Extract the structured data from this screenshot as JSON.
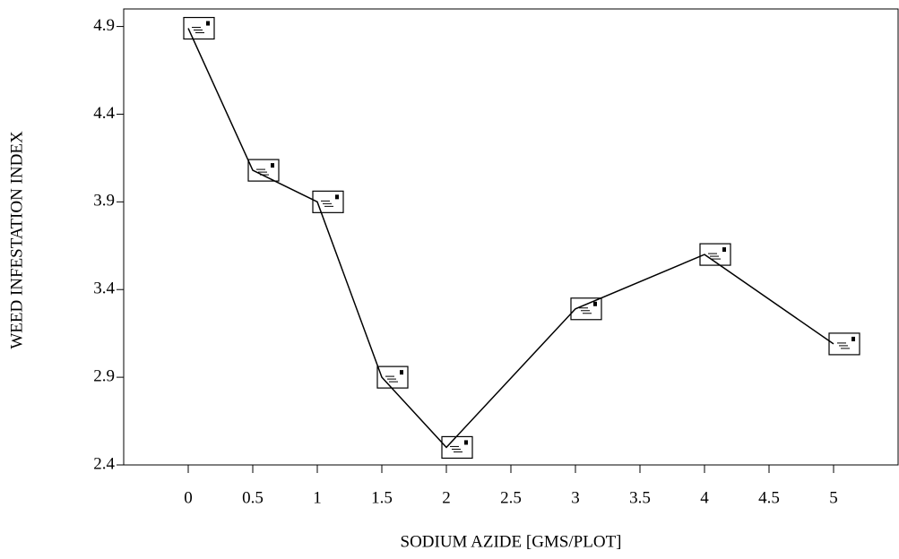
{
  "chart_data": {
    "type": "line",
    "x_label": "SODIUM AZIDE [GMS/PLOT]",
    "y_label": "WEED INFESTATION INDEX",
    "x": [
      0,
      0.5,
      1,
      1.5,
      2,
      3,
      4,
      5
    ],
    "values": [
      4.89,
      4.08,
      3.9,
      2.9,
      2.5,
      3.29,
      3.6,
      3.09
    ],
    "color": "#000000",
    "xlim": [
      -0.5,
      5.5
    ],
    "xticks": [
      0,
      0.5,
      1,
      1.5,
      2,
      2.5,
      3,
      3.5,
      4,
      4.5,
      5
    ],
    "ylim": [
      2.4,
      5.0
    ],
    "yticks": [
      2.4,
      2.9,
      3.4,
      3.9,
      4.4,
      4.9
    ]
  }
}
